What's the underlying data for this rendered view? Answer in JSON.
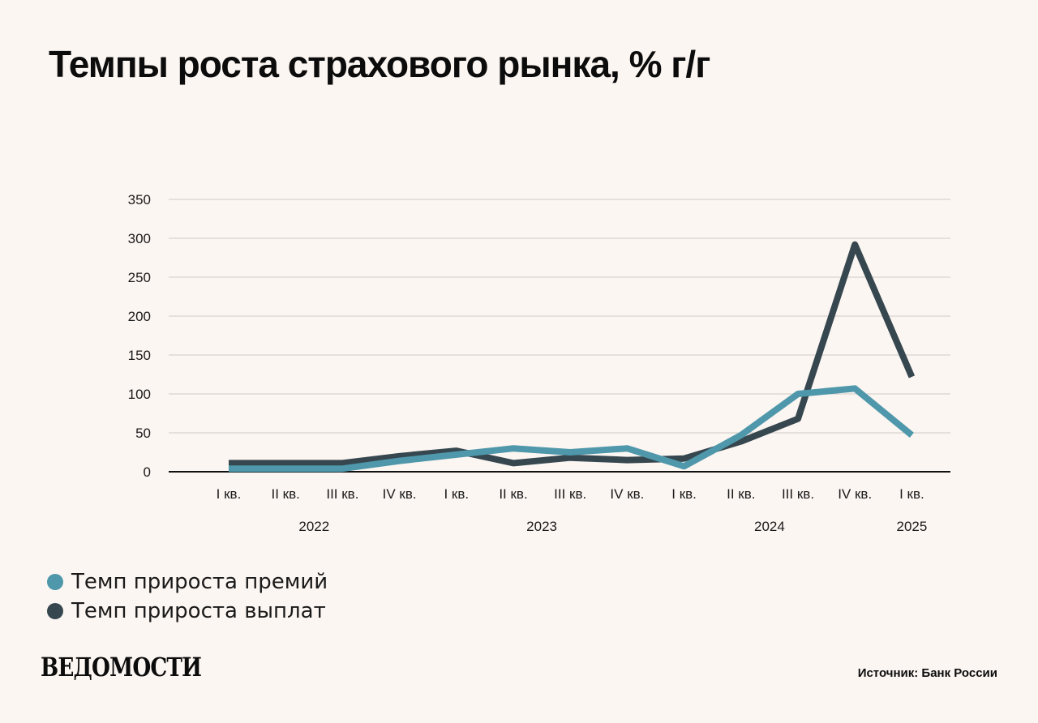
{
  "title": "Темпы роста страхового рынка, % г/г",
  "chart_data": {
    "type": "line",
    "quarters": [
      "I кв.",
      "II кв.",
      "III кв.",
      "IV кв.",
      "I кв.",
      "II кв.",
      "III кв.",
      "IV кв.",
      "I кв.",
      "II кв.",
      "III кв.",
      "IV кв.",
      "I кв."
    ],
    "years": [
      {
        "label": "2022",
        "first_index": 0,
        "last_index": 3
      },
      {
        "label": "2023",
        "first_index": 4,
        "last_index": 7
      },
      {
        "label": "2024",
        "first_index": 8,
        "last_index": 11
      },
      {
        "label": "2025",
        "first_index": 12,
        "last_index": 12
      }
    ],
    "x": [
      "I кв. 2022",
      "II кв. 2022",
      "III кв. 2022",
      "IV кв. 2022",
      "I кв. 2023",
      "II кв. 2023",
      "III кв. 2023",
      "IV кв. 2023",
      "I кв. 2024",
      "II кв. 2024",
      "III кв. 2024",
      "IV кв. 2024",
      "I кв. 2025"
    ],
    "series": [
      {
        "name": "Темп прироста премий",
        "color": "#4f97aa",
        "values": [
          4,
          4,
          4,
          14,
          22,
          30,
          25,
          30,
          7,
          47,
          100,
          107,
          47
        ]
      },
      {
        "name": "Темп прироста выплат",
        "color": "#36474f",
        "values": [
          11,
          11,
          11,
          20,
          27,
          11,
          18,
          15,
          17,
          39,
          68,
          292,
          122
        ]
      }
    ],
    "yticks": [
      0,
      50,
      100,
      150,
      200,
      250,
      300,
      350
    ],
    "ylim": [
      0,
      350
    ],
    "grid": true,
    "legend": "bottom-left"
  },
  "logo": "ВЕДОМОСТИ",
  "source": "Источник: Банк России"
}
